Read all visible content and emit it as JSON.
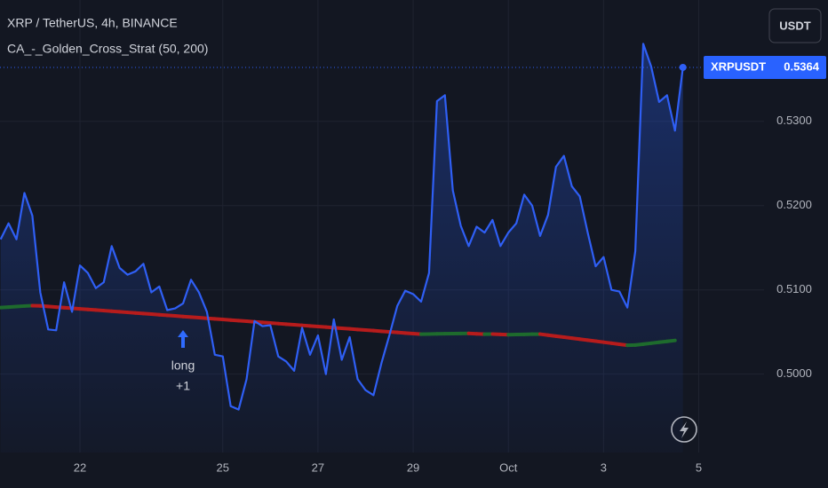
{
  "chart_data": {
    "type": "line",
    "title": "XRP / TetherUS, 4h, BINANCE",
    "currency_button": "USDT",
    "annotation": {
      "label": "long",
      "qty": "+1"
    },
    "categories": [
      null,
      null,
      null,
      null,
      null,
      null,
      null,
      null,
      null,
      null,
      "22",
      null,
      null,
      null,
      null,
      null,
      null,
      null,
      null,
      null,
      null,
      null,
      null,
      null,
      null,
      null,
      null,
      null,
      "25",
      null,
      null,
      null,
      null,
      null,
      null,
      null,
      null,
      null,
      null,
      null,
      "27",
      null,
      null,
      null,
      null,
      null,
      null,
      null,
      null,
      null,
      null,
      null,
      "29",
      null,
      null,
      null,
      null,
      null,
      null,
      null,
      null,
      null,
      null,
      null,
      "Oct",
      null,
      null,
      null,
      null,
      null,
      null,
      null,
      null,
      null,
      null,
      null,
      "3",
      null,
      null,
      null,
      null,
      null,
      null,
      null,
      null,
      null,
      null,
      null,
      "5"
    ],
    "series": [
      {
        "name": "XRPUSDT",
        "color": "#2f5ff5",
        "values": [
          0.516,
          0.5179,
          0.516,
          0.5215,
          0.5188,
          0.5097,
          0.5053,
          0.5052,
          0.5109,
          0.5074,
          0.5129,
          0.512,
          0.5102,
          0.5109,
          0.5152,
          0.5126,
          0.5118,
          0.5122,
          0.5131,
          0.5097,
          0.5104,
          0.5076,
          0.5078,
          0.5084,
          0.5112,
          0.5097,
          0.5074,
          0.5023,
          0.5021,
          0.4962,
          0.4958,
          0.4994,
          0.5063,
          0.5057,
          0.5058,
          0.5021,
          0.5015,
          0.5004,
          0.5055,
          0.5023,
          0.5046,
          0.5,
          0.5065,
          0.5017,
          0.5044,
          0.4994,
          0.4981,
          0.4975,
          0.5013,
          0.5046,
          0.5081,
          0.5099,
          0.5095,
          0.5086,
          0.512,
          0.5324,
          0.5331,
          0.5218,
          0.5176,
          0.5152,
          0.5175,
          0.5168,
          0.5183,
          0.5152,
          0.5168,
          0.5179,
          0.5213,
          0.52,
          0.5164,
          0.5189,
          0.5246,
          0.5259,
          0.5223,
          0.5211,
          0.5168,
          0.5128,
          0.5139,
          0.51,
          0.5098,
          0.5079,
          0.5146,
          0.5392,
          0.5365,
          0.5323,
          0.5331,
          0.5289,
          0.5364,
          null,
          null
        ]
      },
      {
        "name": "CA_-_Golden_Cross_Strat (50, 200)",
        "color": "#b71c1c",
        "up_color": "#1e6b2d",
        "values": [
          0.5079,
          0.50796,
          0.50802,
          0.50808,
          0.50812,
          0.5081,
          0.50803,
          0.50796,
          0.50789,
          0.50782,
          0.50775,
          0.50768,
          0.50761,
          0.50754,
          0.50747,
          0.5074,
          0.50733,
          0.50726,
          0.50719,
          0.50712,
          0.50705,
          0.50698,
          0.50691,
          0.50684,
          0.50677,
          0.5067,
          0.50663,
          0.50656,
          0.50649,
          0.50642,
          0.50635,
          0.50628,
          0.50621,
          0.50614,
          0.50607,
          0.506,
          0.50593,
          0.50586,
          0.50579,
          0.50572,
          0.50565,
          0.50558,
          0.50551,
          0.50544,
          0.50537,
          0.5053,
          0.50523,
          0.50516,
          0.50509,
          0.50502,
          0.50495,
          0.50488,
          0.50481,
          0.50474,
          0.50476,
          0.50478,
          0.5048,
          0.50481,
          0.50482,
          0.50483,
          0.50478,
          0.50474,
          0.50476,
          0.50472,
          0.50468,
          0.5047,
          0.50472,
          0.50474,
          0.50475,
          0.50463,
          0.50451,
          0.50439,
          0.50427,
          0.50415,
          0.50403,
          0.50391,
          0.50379,
          0.50367,
          0.50355,
          0.50343,
          0.50345,
          0.50356,
          0.50367,
          0.50378,
          0.50389,
          0.504,
          null,
          null,
          null
        ]
      }
    ],
    "ylim": [
      0.4907,
      0.5444
    ],
    "yticks": [
      {
        "value": 0.5,
        "label": "0.5000"
      },
      {
        "value": 0.51,
        "label": "0.5100"
      },
      {
        "value": 0.52,
        "label": "0.5200"
      },
      {
        "value": 0.53,
        "label": "0.5300"
      }
    ],
    "grid": true
  }
}
